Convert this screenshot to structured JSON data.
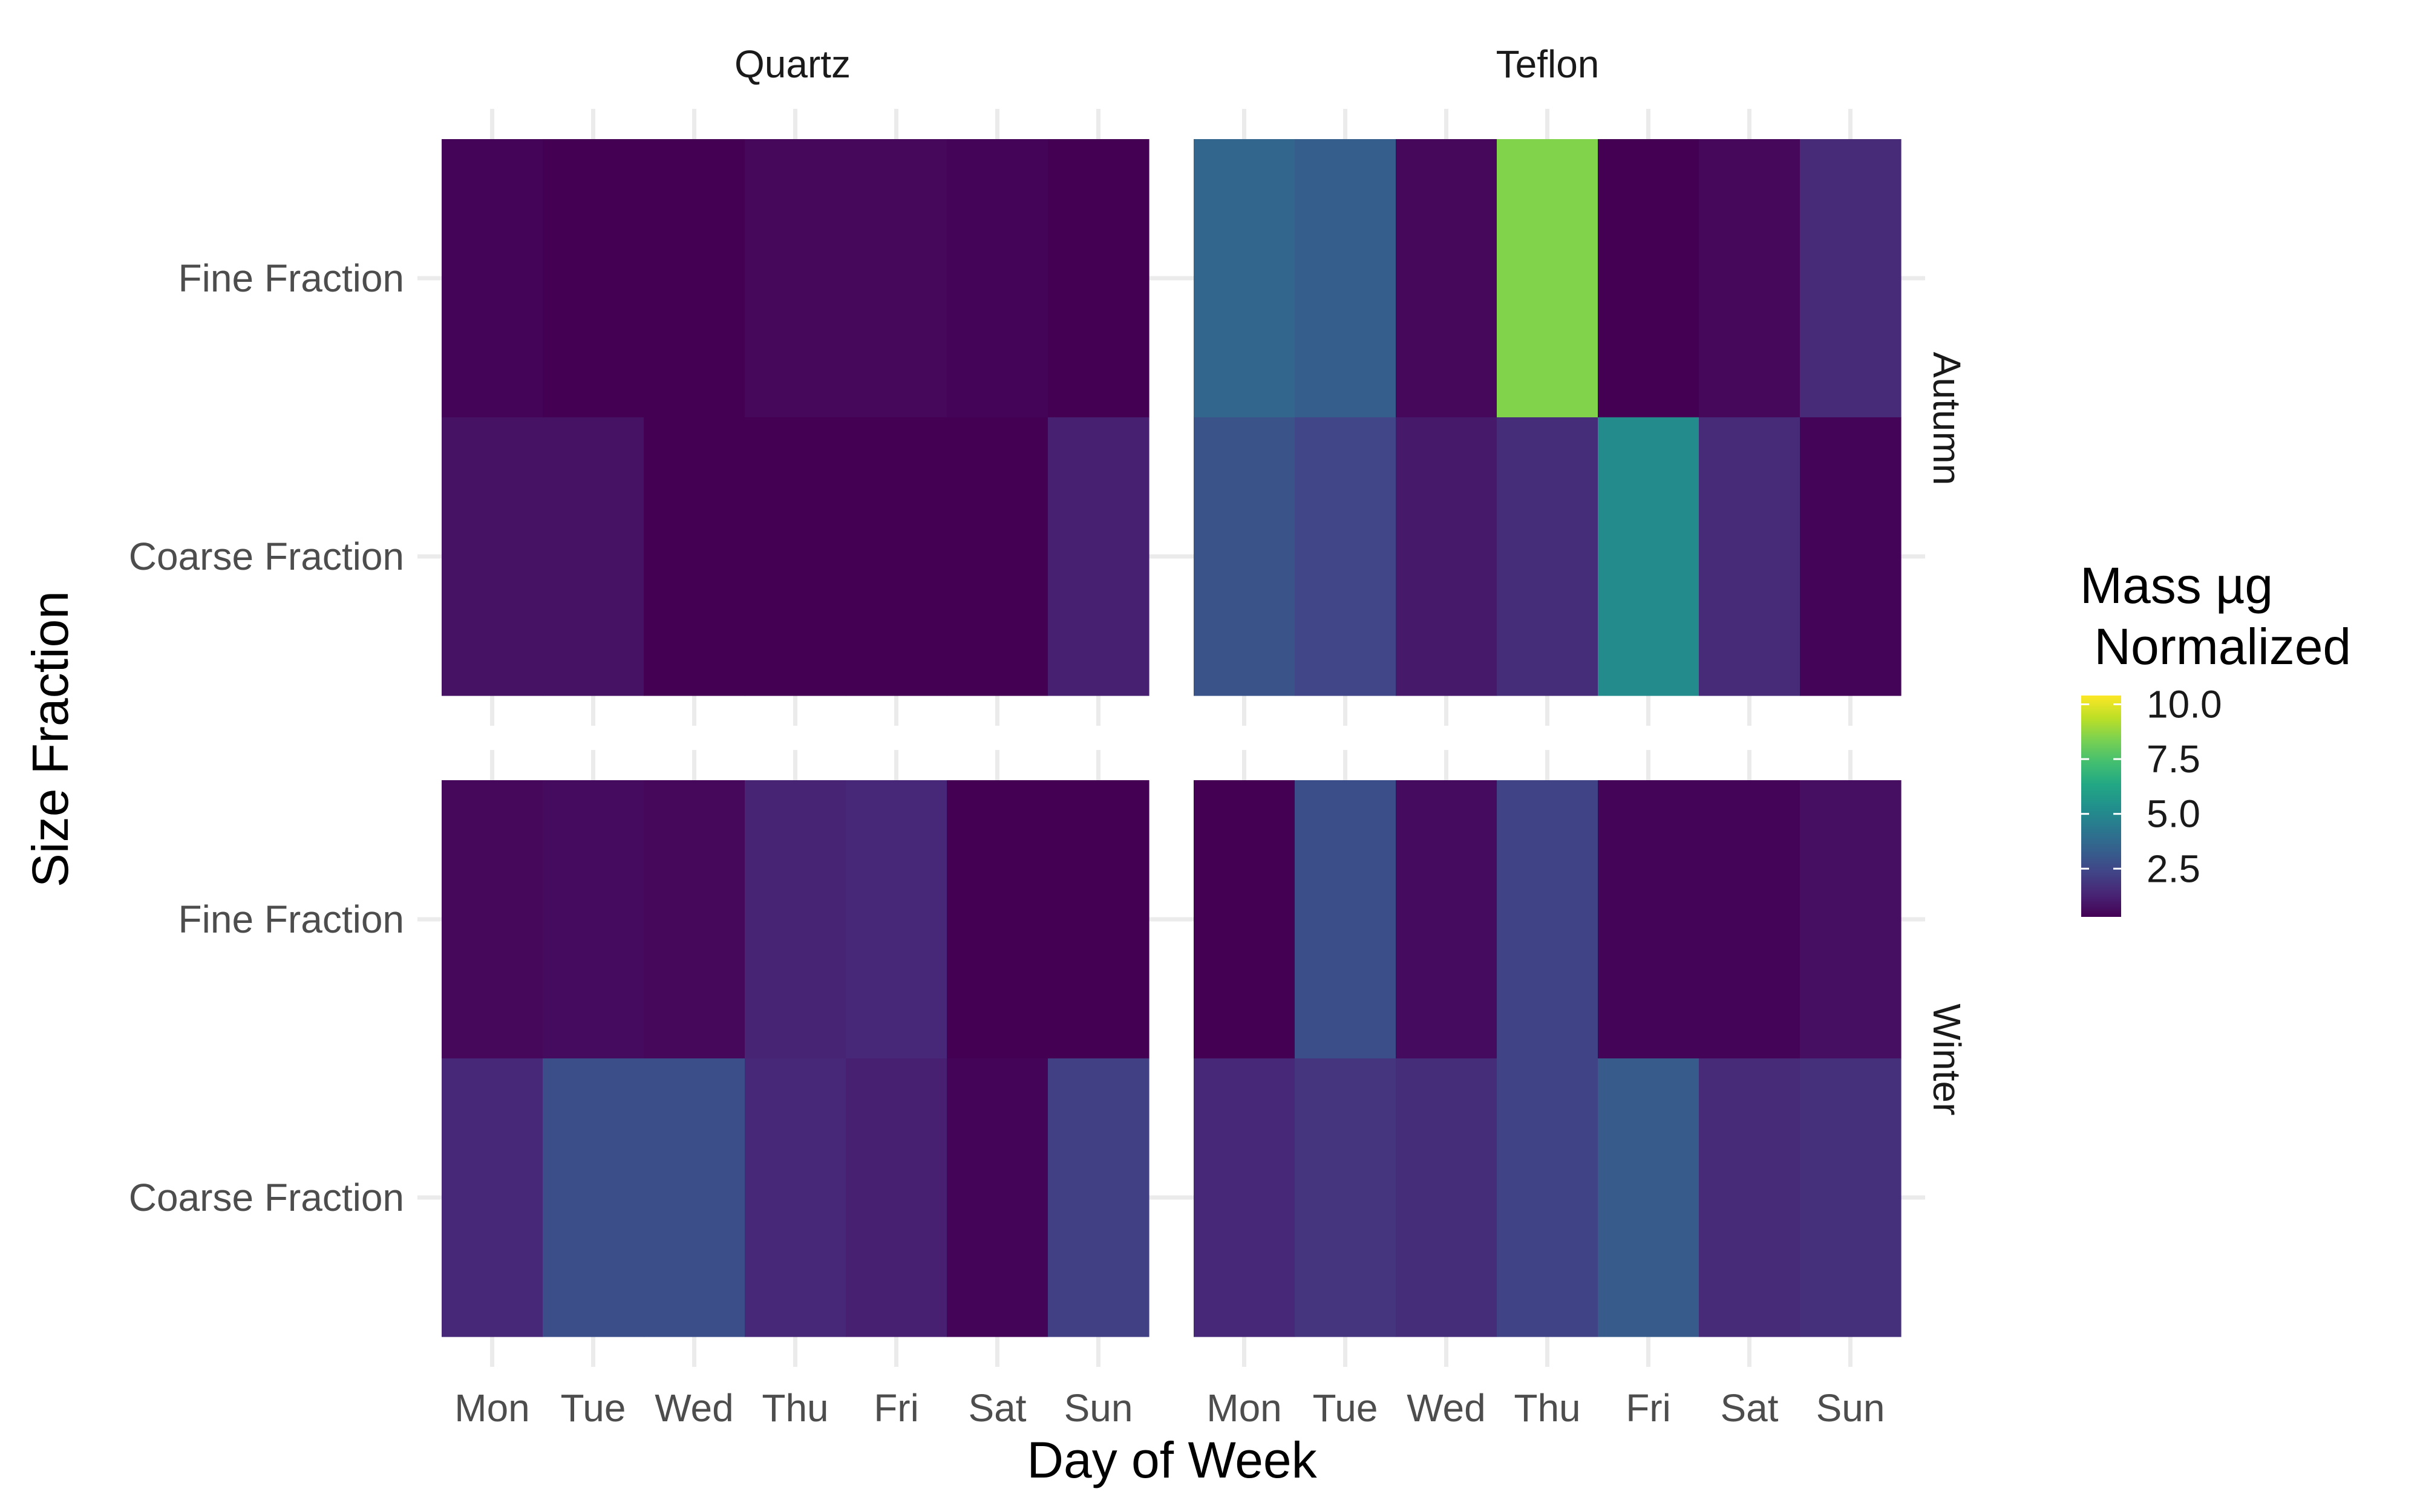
{
  "chart_data": {
    "type": "heatmap",
    "title": "",
    "xlabel": "Day of Week",
    "ylabel": "Size Fraction",
    "x_categories": [
      "Mon",
      "Tue",
      "Wed",
      "Thu",
      "Fri",
      "Sat",
      "Sun"
    ],
    "y_categories": [
      "Fine Fraction",
      "Coarse Fraction"
    ],
    "column_facets": [
      "Quartz",
      "Teflon"
    ],
    "row_facets": [
      "Autumn",
      "Winter"
    ],
    "legend": {
      "title_line1": "Mass µg",
      "title_line2": " Normalized",
      "ticks": [
        2.5,
        5.0,
        7.5,
        10.0
      ],
      "tick_labels": [
        "2.5",
        "5.0",
        "7.5",
        "10.0"
      ],
      "range": [
        0.3,
        10.4
      ],
      "colormap": "viridis",
      "placement": "right"
    },
    "grid": true,
    "panels": [
      {
        "row_facet": "Autumn",
        "column_facet": "Quartz",
        "values": {
          "Fine Fraction": [
            0.4,
            0.3,
            0.3,
            0.5,
            0.5,
            0.4,
            0.3
          ],
          "Coarse Fraction": [
            0.8,
            0.8,
            0.3,
            0.3,
            0.3,
            0.2,
            1.2
          ]
        }
      },
      {
        "row_facet": "Autumn",
        "column_facet": "Teflon",
        "values": {
          "Fine Fraction": [
            3.6,
            3.3,
            0.5,
            8.5,
            0.3,
            0.5,
            1.5
          ],
          "Coarse Fraction": [
            2.9,
            2.4,
            1.0,
            1.6,
            5.1,
            1.5,
            0.4
          ]
        }
      },
      {
        "row_facet": "Winter",
        "column_facet": "Quartz",
        "values": {
          "Fine Fraction": [
            0.5,
            0.6,
            0.5,
            1.3,
            1.4,
            0.3,
            0.2
          ],
          "Coarse Fraction": [
            1.4,
            2.7,
            2.7,
            1.4,
            1.2,
            0.4,
            2.2
          ]
        }
      },
      {
        "row_facet": "Winter",
        "column_facet": "Teflon",
        "values": {
          "Fine Fraction": [
            0.3,
            2.7,
            0.6,
            2.3,
            0.4,
            0.4,
            0.7
          ],
          "Coarse Fraction": [
            1.4,
            1.8,
            1.6,
            2.3,
            3.2,
            1.5,
            1.7
          ]
        }
      }
    ]
  }
}
